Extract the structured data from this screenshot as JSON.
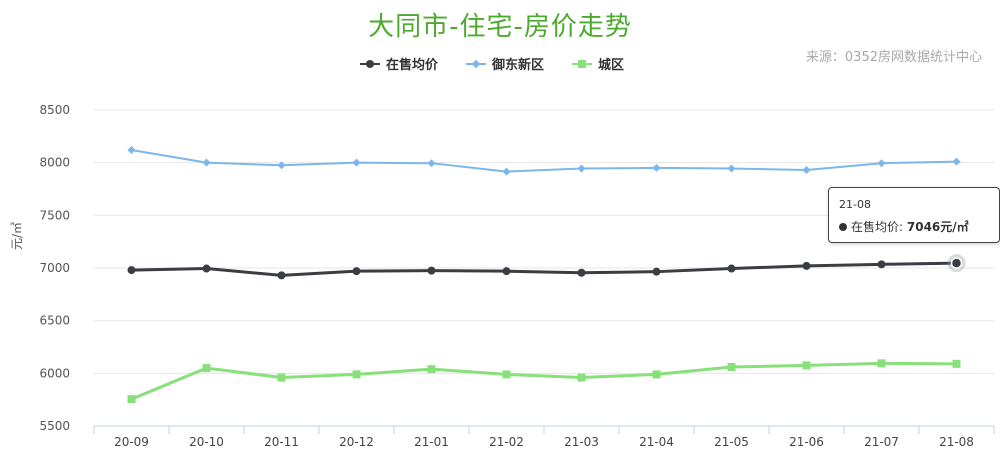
{
  "header": {
    "title": "大同市-住宅-房价走势",
    "source": "来源：0352房网数据统计中心"
  },
  "axis": {
    "ylabel": "元/㎡"
  },
  "tooltip": {
    "period": "21-08",
    "series": "在售均价:",
    "value": "7046元/㎡"
  },
  "colors": {
    "avg": "#3a3d42",
    "yudong": "#7db6e8",
    "chengqu": "#88e07a",
    "title": "#4caa2e"
  },
  "chart_data": {
    "type": "line",
    "title": "大同市-住宅-房价走势",
    "xlabel": "",
    "ylabel": "元/㎡",
    "ylim": [
      5500,
      8500
    ],
    "yticks": [
      5500,
      6000,
      6500,
      7000,
      7500,
      8000,
      8500
    ],
    "categories": [
      "20-09",
      "20-10",
      "20-11",
      "20-12",
      "21-01",
      "21-02",
      "21-03",
      "21-04",
      "21-05",
      "21-06",
      "21-07",
      "21-08"
    ],
    "legend": "top",
    "grid": true,
    "series": [
      {
        "name": "在售均价",
        "marker": "circle",
        "values": [
          6980,
          6995,
          6930,
          6970,
          6975,
          6970,
          6955,
          6965,
          6995,
          7020,
          7035,
          7046
        ]
      },
      {
        "name": "御东新区",
        "marker": "diamond",
        "values": [
          8120,
          8000,
          7975,
          8000,
          7995,
          7915,
          7945,
          7950,
          7945,
          7930,
          7995,
          8010
        ]
      },
      {
        "name": "城区",
        "marker": "square",
        "values": [
          5755,
          6050,
          5960,
          5990,
          6040,
          5990,
          5960,
          5990,
          6060,
          6075,
          6095,
          6090
        ]
      }
    ]
  }
}
